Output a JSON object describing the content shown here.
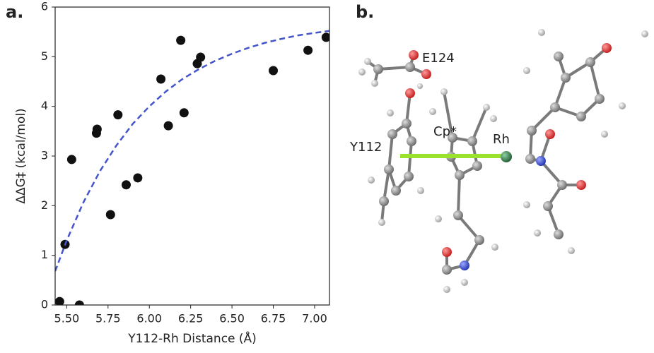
{
  "chart_data": {
    "type": "scatter",
    "panel_label": "a.",
    "x_label": "Y112-Rh Distance (Å)",
    "y_label": "ΔΔG‡ (kcal/mol)",
    "xlim": [
      5.43,
      7.09
    ],
    "ylim": [
      0,
      6
    ],
    "xticks": [
      {
        "value": 5.5,
        "label": "5.50"
      },
      {
        "value": 5.75,
        "label": "5.75"
      },
      {
        "value": 6.0,
        "label": "6.00"
      },
      {
        "value": 6.25,
        "label": "6.25"
      },
      {
        "value": 6.5,
        "label": "6.50"
      },
      {
        "value": 6.75,
        "label": "6.75"
      },
      {
        "value": 7.0,
        "label": "7.00"
      }
    ],
    "yticks": [
      0,
      1,
      2,
      3,
      4,
      5,
      6
    ],
    "series": [
      {
        "color": "#111111",
        "x": [
          5.457,
          5.577,
          5.49,
          5.53,
          5.68,
          5.684,
          5.81,
          5.765,
          5.86,
          5.93,
          6.07,
          6.115,
          6.21,
          6.19,
          6.29,
          6.31,
          6.75,
          6.96,
          7.07
        ],
        "values": [
          0.07,
          0.0,
          1.22,
          2.93,
          3.46,
          3.54,
          3.83,
          1.82,
          2.42,
          2.56,
          4.55,
          3.61,
          3.87,
          5.33,
          4.86,
          4.99,
          4.72,
          5.13,
          5.39
        ]
      },
      {
        "color": "#4455cc",
        "line_style": "dashed",
        "x": [
          5.43,
          5.5,
          5.6,
          5.7,
          5.8,
          5.9,
          6.0,
          6.1,
          6.2,
          6.3,
          6.4,
          6.5,
          6.6,
          6.7,
          6.8,
          6.9,
          7.0,
          7.09
        ],
        "values": [
          0.68,
          1.3,
          2.06,
          2.69,
          3.21,
          3.65,
          4.0,
          4.3,
          4.55,
          4.75,
          4.92,
          5.06,
          5.18,
          5.28,
          5.36,
          5.43,
          5.48,
          5.52
        ]
      }
    ]
  },
  "structure": {
    "panel_label": "b.",
    "labels": [
      "E124",
      "Y112",
      "Cp*",
      "Rh"
    ]
  }
}
